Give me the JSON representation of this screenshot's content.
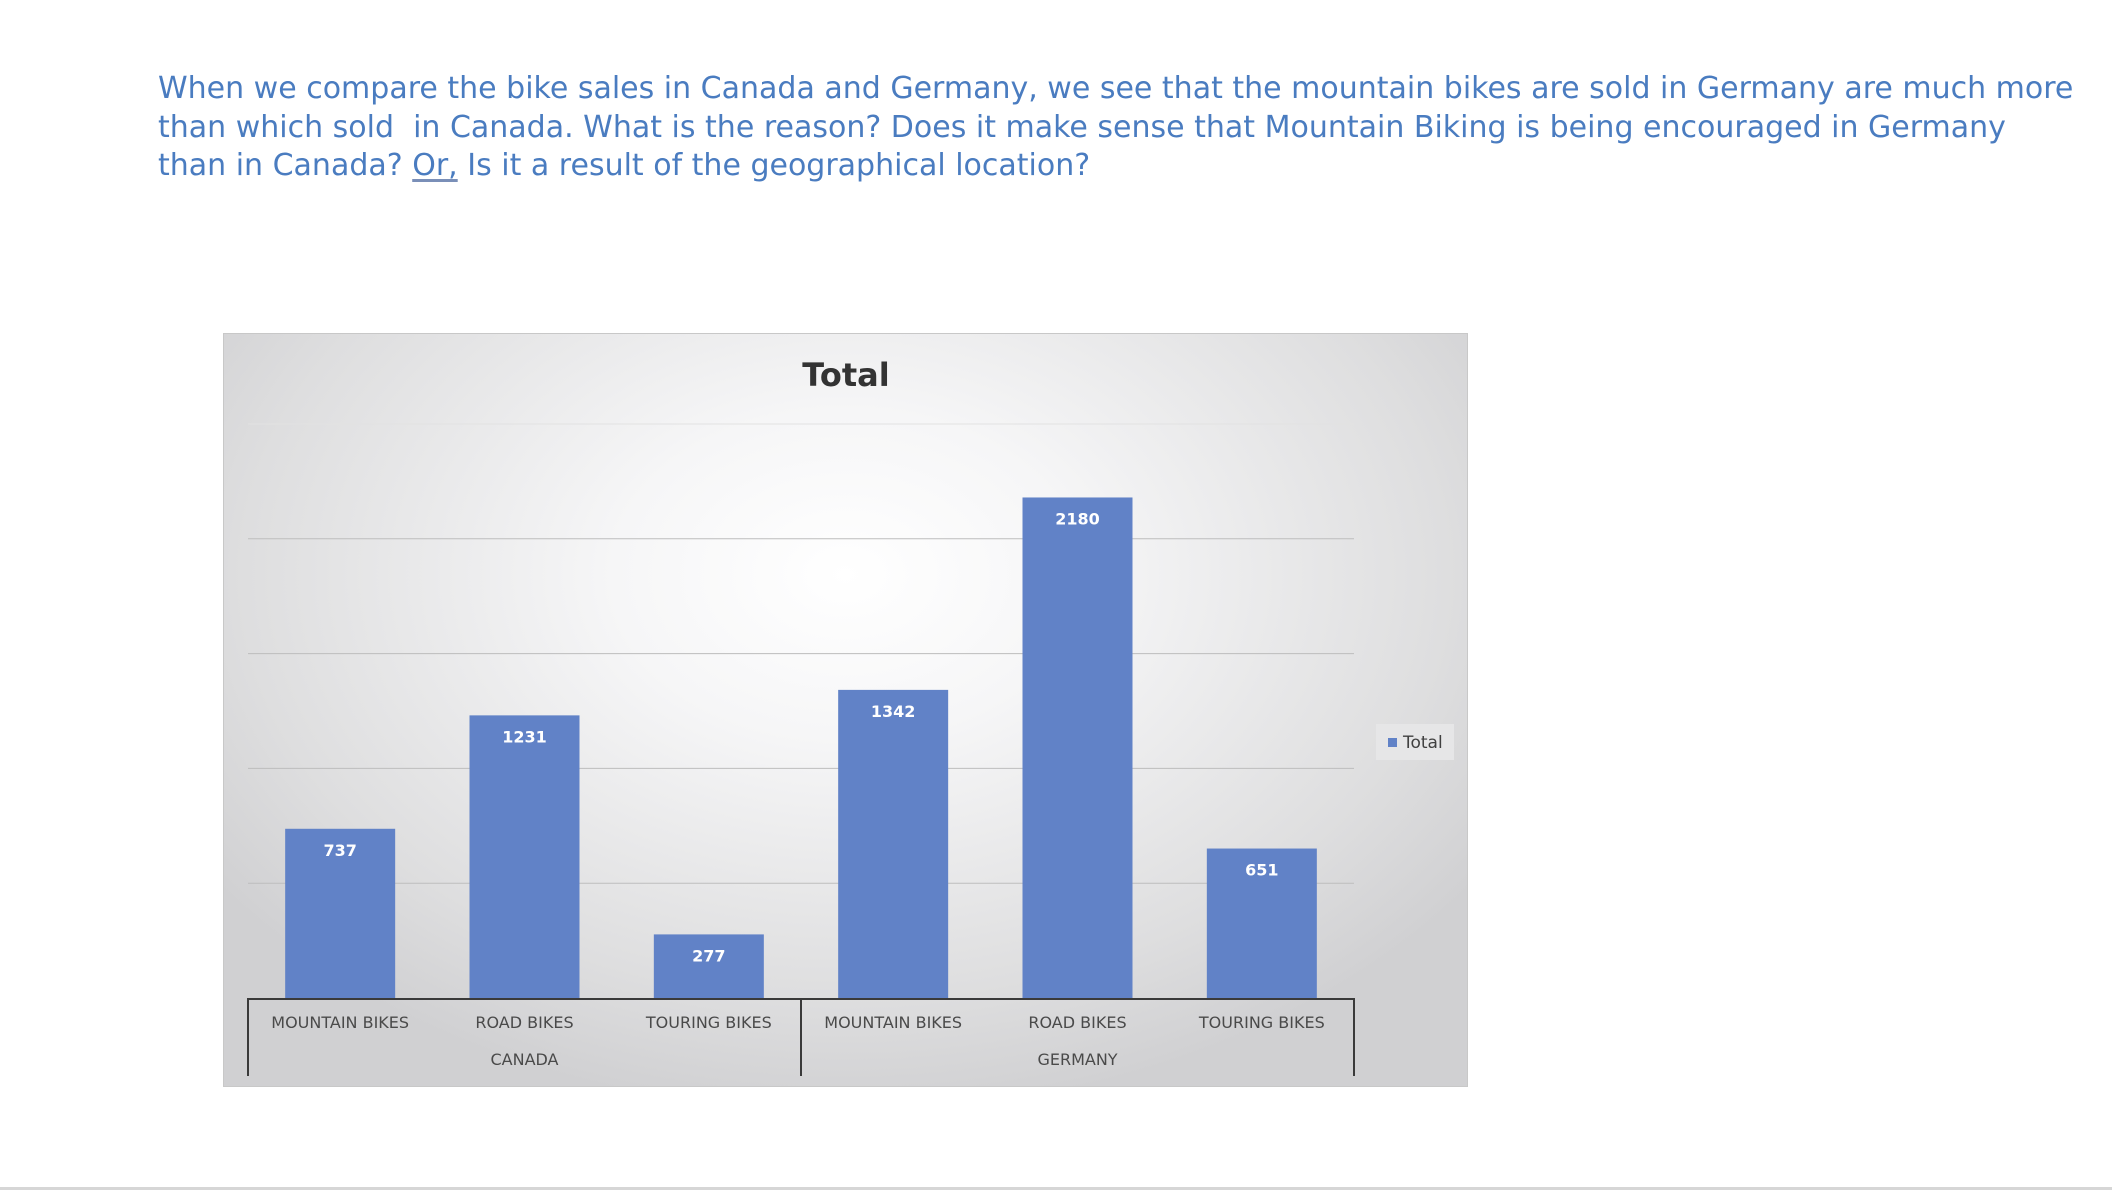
{
  "text": {
    "line1": "When we compare the bike sales in Canada and Germany, we see that the mountain bikes are sold in Germany are much more",
    "line2": "than which sold  in Canada. What is the reason? Does it make sense that Mountain Biking is being encouraged in Germany",
    "line3_start": "than in Canada? ",
    "line3_underlined": "Or,",
    "line3_end": " Is it a result of the geographical location?"
  },
  "chart_data": {
    "type": "bar",
    "title": "Total",
    "categories": [
      "MOUNTAIN BIKES",
      "ROAD BIKES",
      "TOURING BIKES",
      "MOUNTAIN BIKES",
      "ROAD BIKES",
      "TOURING BIKES"
    ],
    "groups": [
      {
        "label": "CANADA",
        "count": 3
      },
      {
        "label": "GERMANY",
        "count": 3
      }
    ],
    "series": [
      {
        "name": "Total",
        "values": [
          737,
          1231,
          277,
          1342,
          2180,
          651
        ],
        "color": "#6182c7"
      }
    ],
    "data_labels": [
      "737",
      "1231",
      "277",
      "1342",
      "2180",
      "651"
    ],
    "ylim": [
      0,
      2500
    ],
    "y_gridlines": [
      500,
      1000,
      1500,
      2000,
      2500
    ],
    "y_tick_labels_visible": false,
    "grid": true,
    "legend": {
      "entries": [
        "Total"
      ],
      "placement": "right"
    },
    "xlabel": "",
    "ylabel": ""
  }
}
